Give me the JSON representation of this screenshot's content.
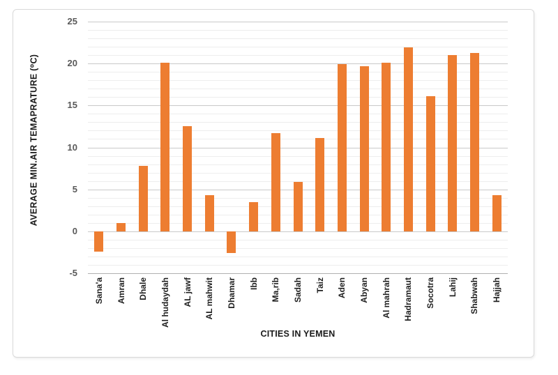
{
  "chart_data": {
    "type": "bar",
    "title": "",
    "xlabel": "CITIES IN YEMEN",
    "ylabel": "AVERAGE MIN.AIR TEMAPRATURE (⁰C)",
    "categories": [
      "Sana'a",
      "Amran",
      "Dhale",
      "Al hudaydah",
      "AL jawf",
      "AL mahwit",
      "Dhamar",
      "Ibb",
      "Ma,rib",
      "Sadah",
      "Taiz",
      "Aden",
      "Abyan",
      "Al mahrah",
      "Hadramaut",
      "Socotra",
      "Lahij",
      "Shabwah",
      "Hajjah"
    ],
    "values": [
      -2.4,
      1.0,
      7.8,
      20.1,
      12.5,
      4.3,
      -2.6,
      3.5,
      11.7,
      5.9,
      11.1,
      19.9,
      19.7,
      20.1,
      21.9,
      16.1,
      21.0,
      21.3,
      4.3
    ],
    "ylim": [
      -5,
      25
    ],
    "y_ticks": [
      25,
      20,
      15,
      10,
      5,
      0,
      -5
    ],
    "y_major_step": 5,
    "y_minor_step": 1,
    "grid": "horizontal major and minor, no vertical",
    "legend": "none",
    "colors": {
      "bar": "#ED7D31",
      "major_grid": "#c9c9c9",
      "minor_grid": "#ededed",
      "axis_line": "#b0b0b0",
      "tick_label": "#595959",
      "category_label": "#1f1f1f",
      "axis_title": "#1a1a1a",
      "frame_border": "#d9d9d9"
    }
  }
}
